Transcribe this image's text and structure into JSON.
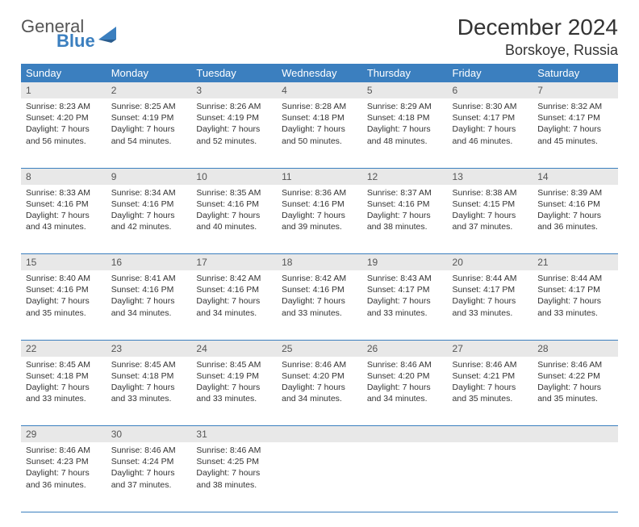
{
  "brand": {
    "line1": "General",
    "line2": "Blue",
    "logo_color": "#3b7fbf",
    "text_color": "#555555"
  },
  "title": "December 2024",
  "location": "Borskoye, Russia",
  "header_bg": "#3b7fbf",
  "daynum_bg": "#e8e8e8",
  "border_color": "#3b7fbf",
  "weekdays": [
    "Sunday",
    "Monday",
    "Tuesday",
    "Wednesday",
    "Thursday",
    "Friday",
    "Saturday"
  ],
  "weeks": [
    [
      {
        "n": "1",
        "sunrise": "Sunrise: 8:23 AM",
        "sunset": "Sunset: 4:20 PM",
        "daylight": "Daylight: 7 hours and 56 minutes."
      },
      {
        "n": "2",
        "sunrise": "Sunrise: 8:25 AM",
        "sunset": "Sunset: 4:19 PM",
        "daylight": "Daylight: 7 hours and 54 minutes."
      },
      {
        "n": "3",
        "sunrise": "Sunrise: 8:26 AM",
        "sunset": "Sunset: 4:19 PM",
        "daylight": "Daylight: 7 hours and 52 minutes."
      },
      {
        "n": "4",
        "sunrise": "Sunrise: 8:28 AM",
        "sunset": "Sunset: 4:18 PM",
        "daylight": "Daylight: 7 hours and 50 minutes."
      },
      {
        "n": "5",
        "sunrise": "Sunrise: 8:29 AM",
        "sunset": "Sunset: 4:18 PM",
        "daylight": "Daylight: 7 hours and 48 minutes."
      },
      {
        "n": "6",
        "sunrise": "Sunrise: 8:30 AM",
        "sunset": "Sunset: 4:17 PM",
        "daylight": "Daylight: 7 hours and 46 minutes."
      },
      {
        "n": "7",
        "sunrise": "Sunrise: 8:32 AM",
        "sunset": "Sunset: 4:17 PM",
        "daylight": "Daylight: 7 hours and 45 minutes."
      }
    ],
    [
      {
        "n": "8",
        "sunrise": "Sunrise: 8:33 AM",
        "sunset": "Sunset: 4:16 PM",
        "daylight": "Daylight: 7 hours and 43 minutes."
      },
      {
        "n": "9",
        "sunrise": "Sunrise: 8:34 AM",
        "sunset": "Sunset: 4:16 PM",
        "daylight": "Daylight: 7 hours and 42 minutes."
      },
      {
        "n": "10",
        "sunrise": "Sunrise: 8:35 AM",
        "sunset": "Sunset: 4:16 PM",
        "daylight": "Daylight: 7 hours and 40 minutes."
      },
      {
        "n": "11",
        "sunrise": "Sunrise: 8:36 AM",
        "sunset": "Sunset: 4:16 PM",
        "daylight": "Daylight: 7 hours and 39 minutes."
      },
      {
        "n": "12",
        "sunrise": "Sunrise: 8:37 AM",
        "sunset": "Sunset: 4:16 PM",
        "daylight": "Daylight: 7 hours and 38 minutes."
      },
      {
        "n": "13",
        "sunrise": "Sunrise: 8:38 AM",
        "sunset": "Sunset: 4:15 PM",
        "daylight": "Daylight: 7 hours and 37 minutes."
      },
      {
        "n": "14",
        "sunrise": "Sunrise: 8:39 AM",
        "sunset": "Sunset: 4:16 PM",
        "daylight": "Daylight: 7 hours and 36 minutes."
      }
    ],
    [
      {
        "n": "15",
        "sunrise": "Sunrise: 8:40 AM",
        "sunset": "Sunset: 4:16 PM",
        "daylight": "Daylight: 7 hours and 35 minutes."
      },
      {
        "n": "16",
        "sunrise": "Sunrise: 8:41 AM",
        "sunset": "Sunset: 4:16 PM",
        "daylight": "Daylight: 7 hours and 34 minutes."
      },
      {
        "n": "17",
        "sunrise": "Sunrise: 8:42 AM",
        "sunset": "Sunset: 4:16 PM",
        "daylight": "Daylight: 7 hours and 34 minutes."
      },
      {
        "n": "18",
        "sunrise": "Sunrise: 8:42 AM",
        "sunset": "Sunset: 4:16 PM",
        "daylight": "Daylight: 7 hours and 33 minutes."
      },
      {
        "n": "19",
        "sunrise": "Sunrise: 8:43 AM",
        "sunset": "Sunset: 4:17 PM",
        "daylight": "Daylight: 7 hours and 33 minutes."
      },
      {
        "n": "20",
        "sunrise": "Sunrise: 8:44 AM",
        "sunset": "Sunset: 4:17 PM",
        "daylight": "Daylight: 7 hours and 33 minutes."
      },
      {
        "n": "21",
        "sunrise": "Sunrise: 8:44 AM",
        "sunset": "Sunset: 4:17 PM",
        "daylight": "Daylight: 7 hours and 33 minutes."
      }
    ],
    [
      {
        "n": "22",
        "sunrise": "Sunrise: 8:45 AM",
        "sunset": "Sunset: 4:18 PM",
        "daylight": "Daylight: 7 hours and 33 minutes."
      },
      {
        "n": "23",
        "sunrise": "Sunrise: 8:45 AM",
        "sunset": "Sunset: 4:18 PM",
        "daylight": "Daylight: 7 hours and 33 minutes."
      },
      {
        "n": "24",
        "sunrise": "Sunrise: 8:45 AM",
        "sunset": "Sunset: 4:19 PM",
        "daylight": "Daylight: 7 hours and 33 minutes."
      },
      {
        "n": "25",
        "sunrise": "Sunrise: 8:46 AM",
        "sunset": "Sunset: 4:20 PM",
        "daylight": "Daylight: 7 hours and 34 minutes."
      },
      {
        "n": "26",
        "sunrise": "Sunrise: 8:46 AM",
        "sunset": "Sunset: 4:20 PM",
        "daylight": "Daylight: 7 hours and 34 minutes."
      },
      {
        "n": "27",
        "sunrise": "Sunrise: 8:46 AM",
        "sunset": "Sunset: 4:21 PM",
        "daylight": "Daylight: 7 hours and 35 minutes."
      },
      {
        "n": "28",
        "sunrise": "Sunrise: 8:46 AM",
        "sunset": "Sunset: 4:22 PM",
        "daylight": "Daylight: 7 hours and 35 minutes."
      }
    ],
    [
      {
        "n": "29",
        "sunrise": "Sunrise: 8:46 AM",
        "sunset": "Sunset: 4:23 PM",
        "daylight": "Daylight: 7 hours and 36 minutes."
      },
      {
        "n": "30",
        "sunrise": "Sunrise: 8:46 AM",
        "sunset": "Sunset: 4:24 PM",
        "daylight": "Daylight: 7 hours and 37 minutes."
      },
      {
        "n": "31",
        "sunrise": "Sunrise: 8:46 AM",
        "sunset": "Sunset: 4:25 PM",
        "daylight": "Daylight: 7 hours and 38 minutes."
      },
      null,
      null,
      null,
      null
    ]
  ]
}
